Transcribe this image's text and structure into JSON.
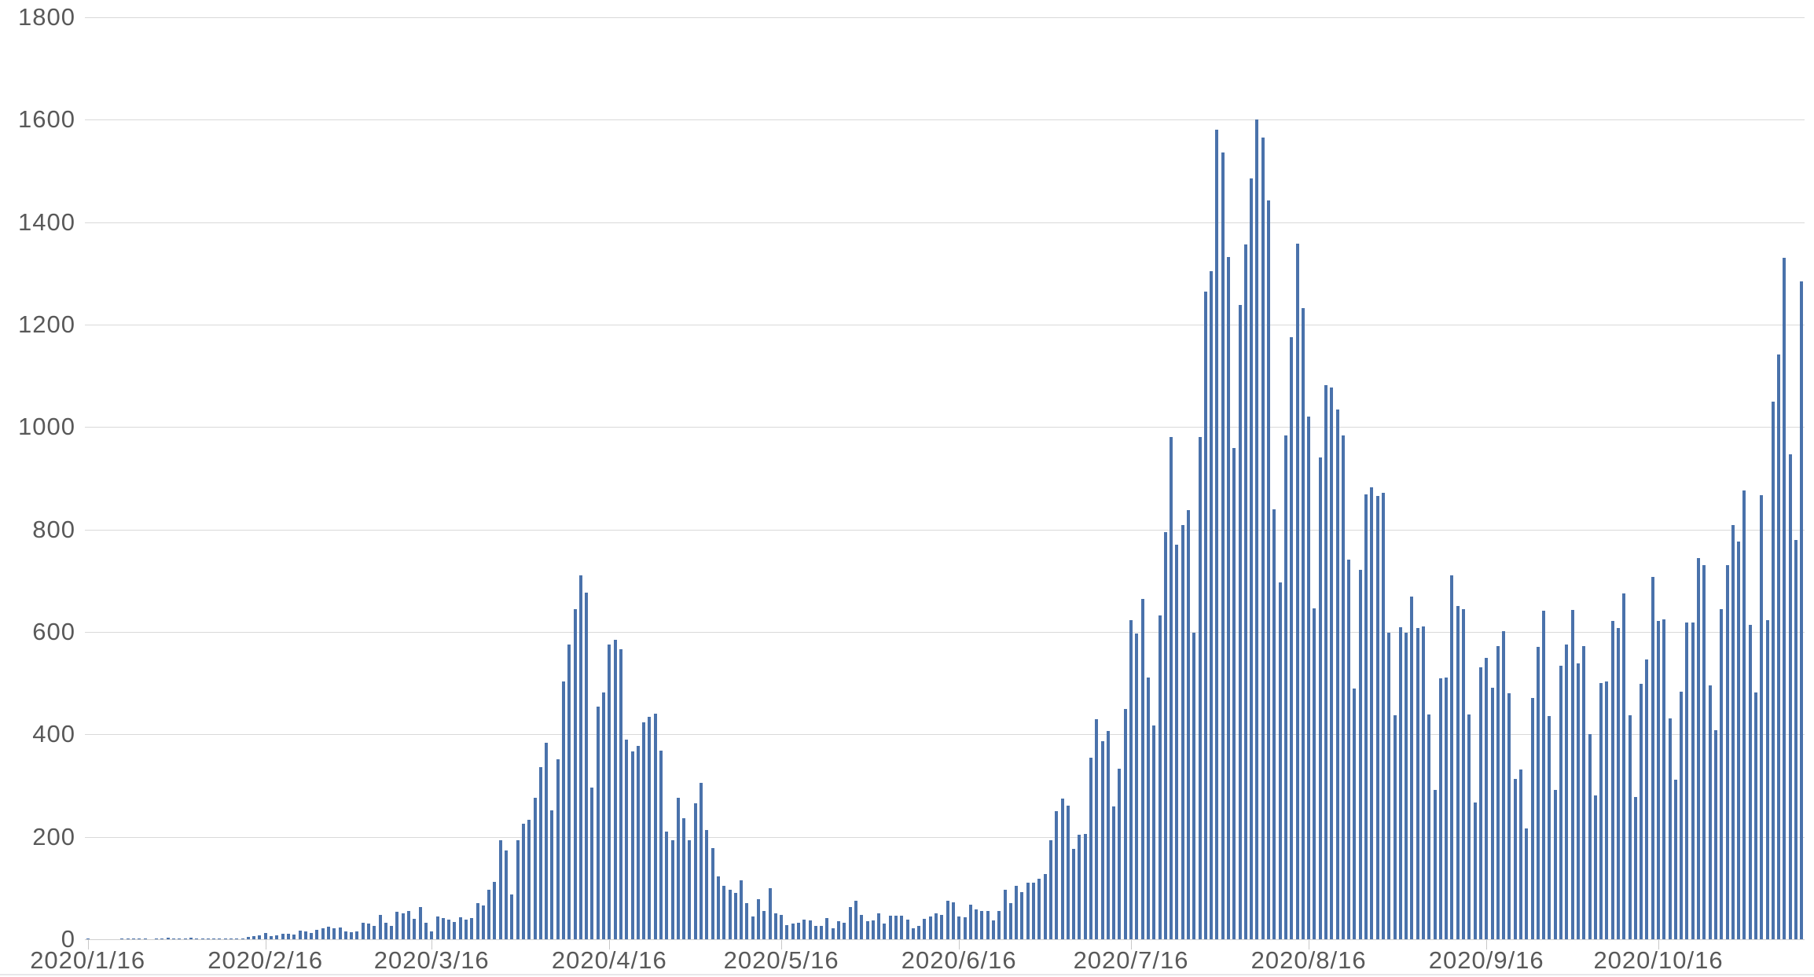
{
  "chart_data": {
    "type": "bar",
    "title": "",
    "xlabel": "",
    "ylabel": "",
    "x_start_date": "2020/1/16",
    "x_end_date": "2020/11/10",
    "ylim": [
      0,
      1800
    ],
    "y_ticks": [
      0,
      200,
      400,
      600,
      800,
      1000,
      1200,
      1400,
      1600,
      1800
    ],
    "grid": true,
    "legend": "none",
    "bar_color": "#4a72ab",
    "axis_text_color": "#595959",
    "gridline_color": "#d9d9d9",
    "axis_line_color": "#d0d0d0",
    "tick_color": "#c8c8c8",
    "bottom_border_color": "#e7e7ea",
    "x_tick_labels": [
      {
        "label": "2020/1/16",
        "day_index": 0
      },
      {
        "label": "2020/2/16",
        "day_index": 31
      },
      {
        "label": "2020/3/16",
        "day_index": 60
      },
      {
        "label": "2020/4/16",
        "day_index": 91
      },
      {
        "label": "2020/5/16",
        "day_index": 121
      },
      {
        "label": "2020/6/16",
        "day_index": 152
      },
      {
        "label": "2020/7/16",
        "day_index": 182
      },
      {
        "label": "2020/8/16",
        "day_index": 213
      },
      {
        "label": "2020/9/16",
        "day_index": 244
      },
      {
        "label": "2020/10/16",
        "day_index": 274
      }
    ],
    "values": [
      1,
      0,
      0,
      0,
      0,
      0,
      1,
      1,
      1,
      2,
      1,
      0,
      2,
      1,
      3,
      2,
      2,
      1,
      3,
      1,
      1,
      1,
      1,
      1,
      2,
      1,
      1,
      2,
      4,
      6,
      7,
      13,
      6,
      8,
      10,
      11,
      9,
      17,
      16,
      13,
      18,
      21,
      24,
      22,
      23,
      15,
      14,
      16,
      33,
      31,
      26,
      47,
      33,
      26,
      54,
      51,
      55,
      40,
      63,
      33,
      15,
      44,
      41,
      39,
      34,
      43,
      39,
      42,
      71,
      66,
      96,
      112,
      194,
      173,
      87,
      193,
      225,
      233,
      277,
      336,
      383,
      252,
      351,
      503,
      576,
      644,
      710,
      677,
      296,
      455,
      482,
      576,
      585,
      566,
      390,
      367,
      378,
      423,
      434,
      441,
      368,
      210,
      194,
      276,
      236,
      193,
      266,
      305,
      213,
      178,
      123,
      105,
      96,
      91,
      115,
      70,
      45,
      79,
      55,
      100,
      51,
      48,
      27,
      31,
      32,
      39,
      37,
      26,
      26,
      42,
      21,
      36,
      33,
      63,
      75,
      47,
      35,
      37,
      50,
      31,
      46,
      46,
      46,
      38,
      21,
      26,
      40,
      44,
      50,
      47,
      75,
      72,
      45,
      43,
      68,
      58,
      56,
      55,
      37,
      55,
      96,
      71,
      105,
      92,
      110,
      110,
      118,
      127,
      194,
      250,
      274,
      261,
      176,
      204,
      206,
      355,
      430,
      386,
      407,
      260,
      333,
      450,
      623,
      597,
      664,
      511,
      418,
      632,
      795,
      981,
      771,
      809,
      838,
      598,
      981,
      1264,
      1305,
      1580,
      1536,
      1332,
      959,
      1239,
      1357,
      1485,
      1601,
      1565,
      1442,
      839,
      697,
      983,
      1176,
      1358,
      1232,
      1021,
      646,
      941,
      1082,
      1077,
      1034,
      983,
      741,
      489,
      722,
      868,
      883,
      865,
      871,
      598,
      437,
      609,
      599,
      669,
      608,
      610,
      439,
      292,
      509,
      511,
      711,
      650,
      645,
      439,
      267,
      531,
      550,
      491,
      572,
      601,
      480,
      313,
      331,
      216,
      471,
      571,
      641,
      436,
      292,
      534,
      576,
      643,
      539,
      573,
      401,
      281,
      500,
      503,
      621,
      607,
      675,
      437,
      278,
      499,
      546,
      708,
      621,
      624,
      431,
      312,
      484,
      618,
      619,
      744,
      731,
      495,
      408,
      644,
      731,
      809,
      777,
      877,
      614,
      482,
      867,
      623,
      1049,
      1141,
      1331,
      947,
      780,
      1284
    ]
  }
}
